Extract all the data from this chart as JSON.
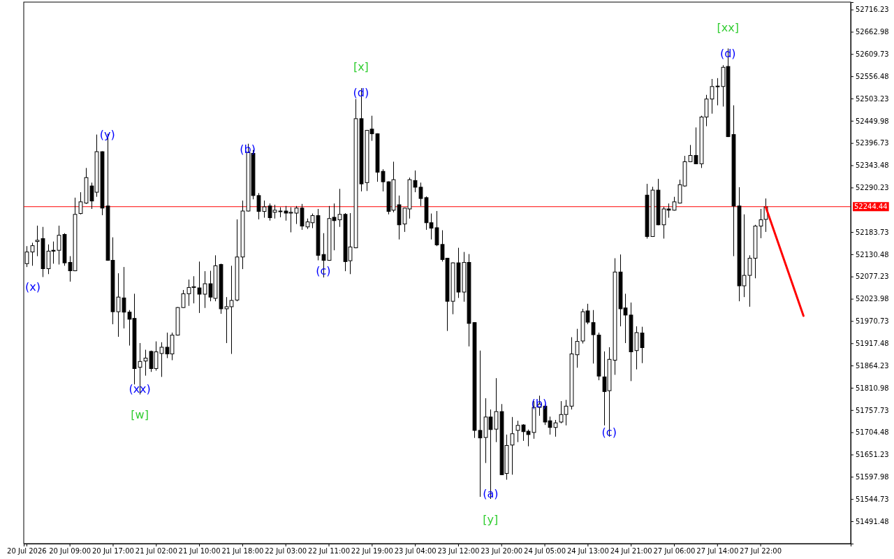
{
  "chart_data": {
    "type": "candlestick",
    "categories": [
      "20 Jul 2026",
      null,
      null,
      null,
      null,
      null,
      null,
      null,
      "20 Jul 09:00",
      null,
      null,
      null,
      null,
      null,
      null,
      null,
      "20 Jul 17:00",
      null,
      null,
      null,
      null,
      null,
      null,
      null,
      "21 Jul 02:00",
      null,
      null,
      null,
      null,
      null,
      null,
      null,
      "21 Jul 10:00",
      null,
      null,
      null,
      null,
      null,
      null,
      null,
      "21 Jul 18:00",
      null,
      null,
      null,
      null,
      null,
      null,
      null,
      "22 Jul 03:00",
      null,
      null,
      null,
      null,
      null,
      null,
      null,
      "22 Jul 11:00",
      null,
      null,
      null,
      null,
      null,
      null,
      null,
      "22 Jul 19:00",
      null,
      null,
      null,
      null,
      null,
      null,
      null,
      "23 Jul 04:00",
      null,
      null,
      null,
      null,
      null,
      null,
      null,
      "23 Jul 12:00",
      null,
      null,
      null,
      null,
      null,
      null,
      null,
      "23 Jul 20:00",
      null,
      null,
      null,
      null,
      null,
      null,
      null,
      "24 Jul 05:00",
      null,
      null,
      null,
      null,
      null,
      null,
      null,
      "24 Jul 13:00",
      null,
      null,
      null,
      null,
      null,
      null,
      null,
      "24 Jul 21:00",
      null,
      null,
      null,
      null,
      null,
      null,
      null,
      "27 Jul 06:00",
      null,
      null,
      null,
      null,
      null,
      null,
      null,
      "27 Jul 14:00",
      null,
      null,
      null,
      null,
      null,
      null,
      null,
      "27 Jul 22:00",
      null,
      null,
      null,
      null,
      null,
      null,
      null,
      null,
      null,
      null,
      null,
      null,
      null,
      null,
      null,
      null
    ],
    "ohlc": [
      [
        52108,
        52150,
        52100,
        52136
      ],
      [
        52136,
        52158,
        52103,
        52151
      ],
      [
        52161,
        52199,
        52126,
        52164
      ],
      [
        52168,
        52196,
        52076,
        52096
      ],
      [
        52096,
        52154,
        52083,
        52138
      ],
      [
        52140,
        52161,
        52108,
        52138
      ],
      [
        52140,
        52199,
        52106,
        52176
      ],
      [
        52178,
        52181,
        52103,
        52110
      ],
      [
        52111,
        52126,
        52065,
        52091
      ],
      [
        52091,
        52266,
        52090,
        52226
      ],
      [
        52228,
        52279,
        52226,
        52256
      ],
      [
        52253,
        52337,
        52251,
        52314
      ],
      [
        52294,
        52302,
        52239,
        52258
      ],
      [
        52279,
        52417,
        52268,
        52376
      ],
      [
        52376,
        52377,
        52224,
        52241
      ],
      [
        52246,
        52419,
        52115,
        52116
      ],
      [
        52116,
        52171,
        51963,
        51993
      ],
      [
        51993,
        52085,
        51933,
        52028
      ],
      [
        52026,
        52100,
        51953,
        51992
      ],
      [
        51992,
        51997,
        51912,
        51975
      ],
      [
        51977,
        52036,
        51819,
        51857
      ],
      [
        51860,
        51918,
        51795,
        51874
      ],
      [
        51875,
        51902,
        51840,
        51882
      ],
      [
        51898,
        51900,
        51849,
        51857
      ],
      [
        51857,
        51922,
        51852,
        51897
      ],
      [
        51893,
        51920,
        51837,
        51908
      ],
      [
        51908,
        51943,
        51882,
        51892
      ],
      [
        51892,
        51943,
        51877,
        51937
      ],
      [
        51937,
        52004,
        51936,
        52003
      ],
      [
        52003,
        52045,
        52002,
        52036
      ],
      [
        52036,
        52070,
        52007,
        52051
      ],
      [
        52051,
        52078,
        52013,
        52053
      ],
      [
        52050,
        52113,
        51990,
        52035
      ],
      [
        52035,
        52090,
        52002,
        52060
      ],
      [
        52060,
        52091,
        52018,
        52028
      ],
      [
        52025,
        52128,
        52018,
        52103
      ],
      [
        52106,
        52108,
        51988,
        52000
      ],
      [
        52000,
        52028,
        51918,
        52005
      ],
      [
        52005,
        52103,
        51892,
        52020
      ],
      [
        52021,
        52214,
        52018,
        52124
      ],
      [
        52124,
        52259,
        52095,
        52234
      ],
      [
        52234,
        52395,
        52233,
        52374
      ],
      [
        52372,
        52380,
        52262,
        52271
      ],
      [
        52271,
        52277,
        52214,
        52233
      ],
      [
        52233,
        52259,
        52218,
        52244
      ],
      [
        52246,
        52252,
        52211,
        52218
      ],
      [
        52231,
        52249,
        52216,
        52236
      ],
      [
        52233,
        52243,
        52219,
        52234
      ],
      [
        52234,
        52246,
        52211,
        52229
      ],
      [
        52229,
        52243,
        52183,
        52231
      ],
      [
        52229,
        52246,
        52203,
        52241
      ],
      [
        52241,
        52251,
        52189,
        52198
      ],
      [
        52196,
        52216,
        52191,
        52208
      ],
      [
        52206,
        52228,
        52193,
        52223
      ],
      [
        52223,
        52239,
        52116,
        52128
      ],
      [
        52130,
        52181,
        52075,
        52116
      ],
      [
        52116,
        52246,
        52115,
        52216
      ],
      [
        52219,
        52252,
        52140,
        52211
      ],
      [
        52213,
        52287,
        52196,
        52226
      ],
      [
        52226,
        52229,
        52090,
        52113
      ],
      [
        52115,
        52229,
        52083,
        52148
      ],
      [
        52146,
        52502,
        52145,
        52455
      ],
      [
        52455,
        52528,
        52281,
        52299
      ],
      [
        52302,
        52428,
        52282,
        52427
      ],
      [
        52430,
        52462,
        52402,
        52419
      ],
      [
        52419,
        52420,
        52304,
        52327
      ],
      [
        52329,
        52334,
        52281,
        52304
      ],
      [
        52304,
        52305,
        52226,
        52233
      ],
      [
        52236,
        52352,
        52231,
        52309
      ],
      [
        52249,
        52271,
        52166,
        52201
      ],
      [
        52203,
        52242,
        52184,
        52241
      ],
      [
        52239,
        52314,
        52216,
        52309
      ],
      [
        52307,
        52331,
        52279,
        52291
      ],
      [
        52291,
        52302,
        52246,
        52264
      ],
      [
        52266,
        52269,
        52189,
        52206
      ],
      [
        52206,
        52228,
        52166,
        52193
      ],
      [
        52194,
        52234,
        52150,
        52153
      ],
      [
        52154,
        52188,
        52113,
        52118
      ],
      [
        52121,
        52122,
        51947,
        52018
      ],
      [
        52018,
        52111,
        51987,
        52110
      ],
      [
        52110,
        52146,
        52026,
        52040
      ],
      [
        52040,
        52136,
        52017,
        52111
      ],
      [
        52111,
        52131,
        51910,
        51965
      ],
      [
        51967,
        51968,
        51691,
        51709
      ],
      [
        51709,
        51900,
        51550,
        51691
      ],
      [
        51692,
        51786,
        51631,
        51741
      ],
      [
        51741,
        51759,
        51545,
        51711
      ],
      [
        51712,
        51834,
        51681,
        51754
      ],
      [
        51754,
        51772,
        51602,
        51603
      ],
      [
        51606,
        51699,
        51591,
        51673
      ],
      [
        51674,
        51741,
        51603,
        51701
      ],
      [
        51709,
        51732,
        51681,
        51721
      ],
      [
        51722,
        51724,
        51684,
        51706
      ],
      [
        51707,
        51711,
        51671,
        51699
      ],
      [
        51704,
        51779,
        51689,
        51764
      ],
      [
        51764,
        51792,
        51744,
        51772
      ],
      [
        51767,
        51771,
        51722,
        51729
      ],
      [
        51732,
        51742,
        51699,
        51716
      ],
      [
        51716,
        51734,
        51694,
        51727
      ],
      [
        51729,
        51779,
        51726,
        51747
      ],
      [
        51747,
        51782,
        51721,
        51767
      ],
      [
        51767,
        51932,
        51759,
        51892
      ],
      [
        51890,
        51952,
        51859,
        51922
      ],
      [
        51923,
        52000,
        51917,
        51993
      ],
      [
        51995,
        52012,
        51963,
        51968
      ],
      [
        51967,
        51997,
        51869,
        51938
      ],
      [
        51937,
        51943,
        51829,
        51839
      ],
      [
        51837,
        51898,
        51721,
        51802
      ],
      [
        51804,
        51908,
        51694,
        51879
      ],
      [
        51877,
        52121,
        51842,
        52088
      ],
      [
        52088,
        52130,
        51958,
        52000
      ],
      [
        52002,
        52036,
        51918,
        51985
      ],
      [
        51985,
        52015,
        51827,
        51897
      ],
      [
        51900,
        51958,
        51855,
        51943
      ],
      [
        51942,
        51957,
        51870,
        51907
      ],
      [
        52272,
        52299,
        52168,
        52173
      ],
      [
        52173,
        52292,
        52172,
        52284
      ],
      [
        52284,
        52311,
        52200,
        52201
      ],
      [
        52201,
        52244,
        52168,
        52239
      ],
      [
        52239,
        52252,
        52218,
        52236
      ],
      [
        52236,
        52268,
        52235,
        52256
      ],
      [
        52253,
        52309,
        52252,
        52297
      ],
      [
        52294,
        52366,
        52292,
        52352
      ],
      [
        52352,
        52392,
        52351,
        52367
      ],
      [
        52367,
        52434,
        52346,
        52347
      ],
      [
        52347,
        52462,
        52337,
        52459
      ],
      [
        52459,
        52512,
        52437,
        52502
      ],
      [
        52502,
        52550,
        52467,
        52532
      ],
      [
        52532,
        52552,
        52487,
        52533
      ],
      [
        52532,
        52583,
        52484,
        52578
      ],
      [
        52580,
        52623,
        52411,
        52412
      ],
      [
        52417,
        52487,
        52126,
        52246
      ],
      [
        52246,
        52291,
        52018,
        52055
      ],
      [
        52055,
        52226,
        52028,
        52080
      ],
      [
        52080,
        52128,
        52005,
        52121
      ],
      [
        52121,
        52201,
        52073,
        52198
      ],
      [
        52198,
        52239,
        52169,
        52213
      ],
      [
        52214,
        52264,
        52184,
        52244
      ],
      null,
      null,
      null,
      null,
      null,
      null,
      null,
      null,
      null,
      null,
      null,
      null,
      null,
      null,
      null
    ],
    "ylim": [
      51438,
      52734
    ],
    "yticks": [
      52716.23,
      52662.98,
      52609.73,
      52556.48,
      52503.23,
      52449.98,
      52396.73,
      52343.48,
      52290.23,
      52183.73,
      52130.48,
      52077.23,
      52023.98,
      51970.73,
      51917.48,
      51864.23,
      51810.98,
      51757.73,
      51704.48,
      51651.23,
      51597.98,
      51544.73,
      51491.48
    ],
    "ref_lines": [
      {
        "axis": "y",
        "value": 52244.44,
        "label": "52244.44",
        "color": "#ff0000"
      }
    ],
    "annotations": [
      "(x)",
      "(y)",
      "(xx)",
      "[w]",
      "(b)",
      "(c)",
      "(d)",
      "[x]",
      "(a)",
      "[y]",
      "(b)",
      "(c)",
      "(d)",
      "[xx]"
    ]
  }
}
